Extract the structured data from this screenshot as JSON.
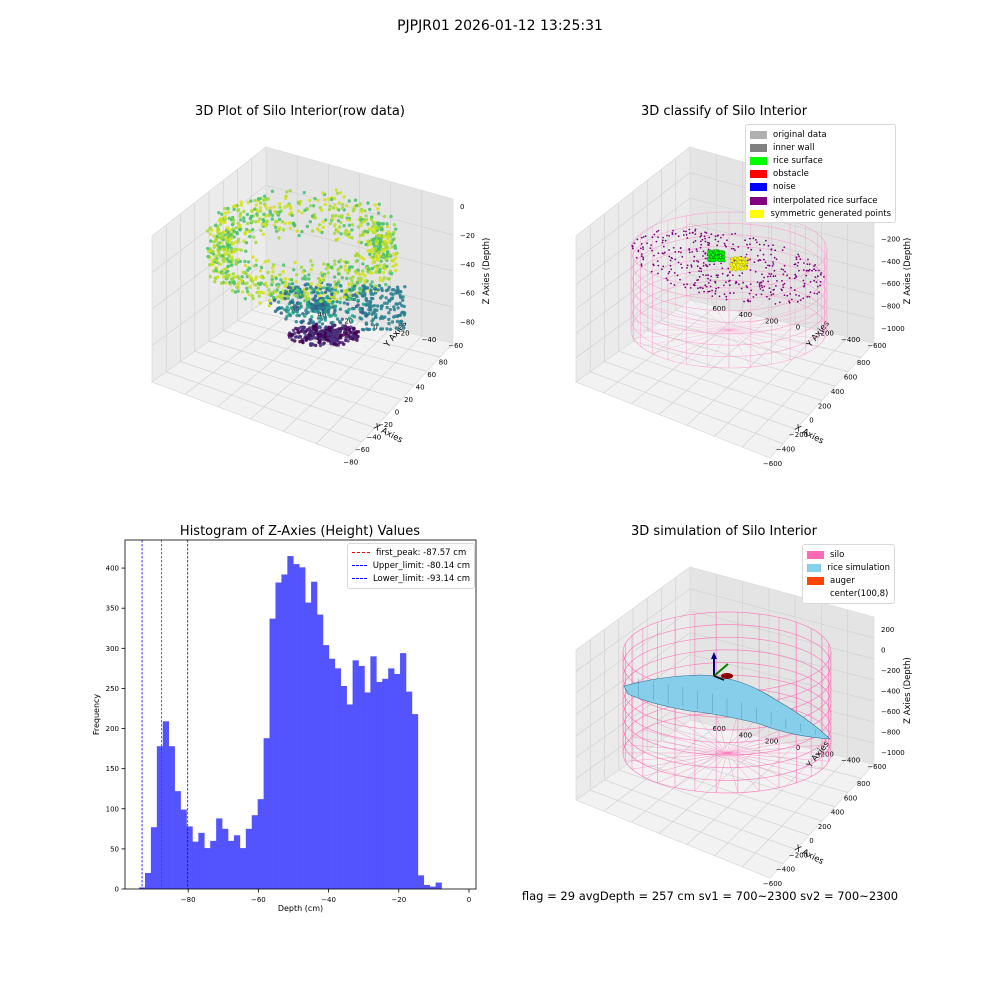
{
  "suptitle": "PJPJR01 2026-01-12 13:25:31",
  "panels": {
    "raw": {
      "title": "3D Plot of Silo Interior(row data)",
      "xlabel": "X Axies",
      "ylabel": "Y Axies",
      "zlabel": "Z Axies (Depth)",
      "xticks": [
        "−80",
        "−60",
        "−40",
        "−20",
        "0",
        "20",
        "40",
        "60",
        "80"
      ],
      "yticks": [
        "−60",
        "−40",
        "−20",
        "0",
        "20",
        "40",
        "60"
      ],
      "zticks": [
        "0",
        "−20",
        "−40",
        "−60",
        "−80"
      ]
    },
    "classify": {
      "title": "3D classify of Silo Interior",
      "xlabel": "X Axies",
      "ylabel": "Y Axies",
      "zlabel": "Z Axies (Depth)",
      "xticks": [
        "−600",
        "−400",
        "−200",
        "0",
        "200",
        "400",
        "600",
        "800"
      ],
      "yticks": [
        "−600",
        "−400",
        "−200",
        "0",
        "200",
        "400",
        "600"
      ],
      "zticks": [
        "0",
        "−200",
        "−400",
        "−600",
        "−800",
        "−1000"
      ],
      "legend": [
        {
          "label": "original data",
          "color": "#b0b0b0"
        },
        {
          "label": "inner wall",
          "color": "#808080"
        },
        {
          "label": "rice surface",
          "color": "#00ff00"
        },
        {
          "label": "obstacle",
          "color": "#ff0000"
        },
        {
          "label": "noise",
          "color": "#0000ff"
        },
        {
          "label": "interpolated rice surface",
          "color": "#800080"
        },
        {
          "label": "symmetric generated points",
          "color": "#ffff00"
        }
      ]
    },
    "simulation": {
      "title": "3D simulation of Silo Interior",
      "xlabel": "X Axies",
      "ylabel": "Y Axies",
      "zlabel": "Z Axies (Depth)",
      "xticks": [
        "−600",
        "−400",
        "−200",
        "0",
        "200",
        "400",
        "600",
        "800"
      ],
      "yticks": [
        "−600",
        "−400",
        "−200",
        "0",
        "200",
        "400",
        "600"
      ],
      "zticks": [
        "200",
        "0",
        "−200",
        "−400",
        "−600",
        "−800",
        "−1000"
      ],
      "legend": [
        {
          "label": "silo",
          "color": "#ff69b4"
        },
        {
          "label": "rice simulation",
          "color": "#87ceeb"
        },
        {
          "label": "auger",
          "color": "#ff4500"
        },
        {
          "label": "center(100,8)",
          "color": ""
        }
      ]
    }
  },
  "status_line": "flag = 29  avgDepth = 257 cm  sv1 = 700~2300  sv2 = 700~2300",
  "chart_data": [
    {
      "type": "bar",
      "title": "Histogram of Z-Axies (Height) Values",
      "xlabel": "Depth (cm)",
      "ylabel": "Frequency",
      "bar_color": "#4b4bff",
      "xlim": [
        -98,
        2
      ],
      "ylim": [
        0,
        435
      ],
      "xticks": [
        -80,
        -60,
        -40,
        -20,
        0
      ],
      "xtick_labels": [
        "−80",
        "−60",
        "−40",
        "−20",
        "0"
      ],
      "yticks": [
        0,
        50,
        100,
        150,
        200,
        250,
        300,
        350,
        400
      ],
      "bin_width": 1.69,
      "bin_starts": [
        -94.0,
        -92.31,
        -90.62,
        -88.93,
        -87.24,
        -85.55,
        -83.86,
        -82.17,
        -80.48,
        -78.79,
        -77.1,
        -75.41,
        -73.72,
        -72.03,
        -70.34,
        -68.65,
        -66.96,
        -65.27,
        -63.58,
        -61.89,
        -60.2,
        -58.51,
        -56.82,
        -55.13,
        -53.44,
        -51.75,
        -50.06,
        -48.37,
        -46.68,
        -44.99,
        -43.3,
        -41.61,
        -39.92,
        -38.23,
        -36.54,
        -34.85,
        -33.16,
        -31.47,
        -29.78,
        -28.09,
        -26.4,
        -24.71,
        -23.02,
        -21.33,
        -19.64,
        -17.95,
        -16.26,
        -14.57,
        -12.88,
        -11.19,
        -9.5,
        -7.81,
        -6.12,
        -4.43,
        -2.74
      ],
      "values": [
        2,
        20,
        77,
        178,
        209,
        178,
        122,
        99,
        78,
        59,
        70,
        51,
        60,
        88,
        75,
        60,
        67,
        51,
        75,
        92,
        112,
        188,
        337,
        382,
        392,
        415,
        405,
        401,
        357,
        383,
        342,
        304,
        287,
        275,
        253,
        230,
        285,
        278,
        245,
        290,
        258,
        262,
        275,
        268,
        294,
        246,
        218,
        17,
        5,
        3,
        8,
        0,
        0,
        0,
        0
      ],
      "lines": [
        {
          "name": "first_peak: -87.57 cm",
          "x": -87.57,
          "color": "#ff0000"
        },
        {
          "name": "Upper_limit: -80.14 cm",
          "x": -80.14,
          "color": "#0000ff"
        },
        {
          "name": "Lower_limit: -93.14 cm",
          "x": -93.14,
          "color": "#0000ff"
        }
      ]
    }
  ]
}
